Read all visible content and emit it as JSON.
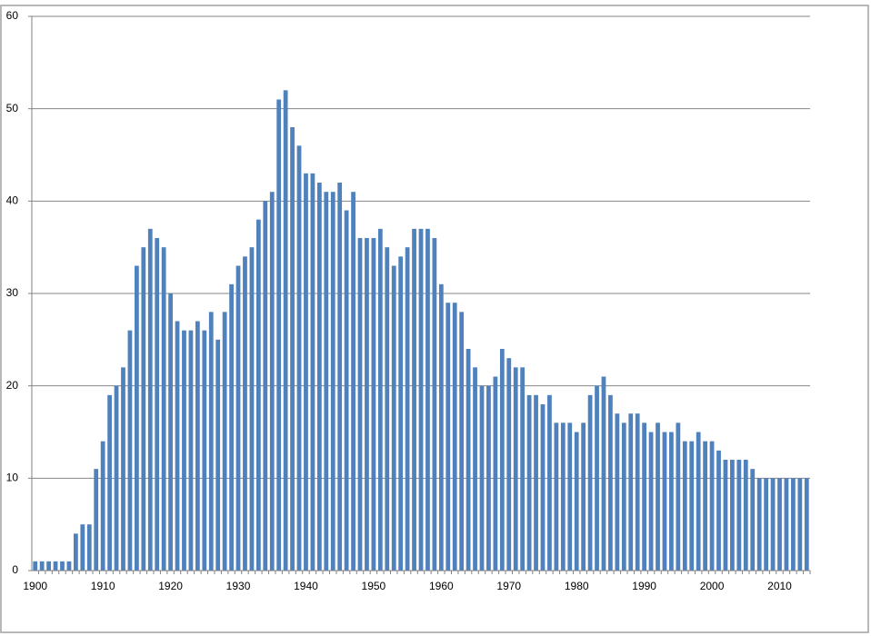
{
  "chart_data": {
    "type": "bar",
    "categories": [
      "1900",
      null,
      null,
      null,
      null,
      null,
      null,
      null,
      null,
      null,
      "1910",
      null,
      null,
      null,
      null,
      null,
      null,
      null,
      null,
      null,
      "1920",
      null,
      null,
      null,
      null,
      null,
      null,
      null,
      null,
      null,
      "1930",
      null,
      null,
      null,
      null,
      null,
      null,
      null,
      null,
      null,
      "1940",
      null,
      null,
      null,
      null,
      null,
      null,
      null,
      null,
      null,
      "1950",
      null,
      null,
      null,
      null,
      null,
      null,
      null,
      null,
      null,
      "1960",
      null,
      null,
      null,
      null,
      null,
      null,
      null,
      null,
      null,
      "1970",
      null,
      null,
      null,
      null,
      null,
      null,
      null,
      null,
      null,
      "1980",
      null,
      null,
      null,
      null,
      null,
      null,
      null,
      null,
      null,
      "1990",
      null,
      null,
      null,
      null,
      null,
      null,
      null,
      null,
      null,
      "2000",
      null,
      null,
      null,
      null,
      null,
      null,
      null,
      null,
      null,
      "2010",
      null,
      null,
      null,
      null
    ],
    "values": [
      1,
      1,
      1,
      1,
      1,
      1,
      4,
      5,
      5,
      11,
      14,
      19,
      20,
      22,
      26,
      33,
      35,
      37,
      36,
      35,
      30,
      27,
      26,
      26,
      27,
      26,
      28,
      25,
      28,
      31,
      33,
      34,
      35,
      38,
      40,
      41,
      51,
      52,
      48,
      46,
      43,
      43,
      42,
      41,
      41,
      42,
      39,
      41,
      36,
      36,
      36,
      37,
      35,
      33,
      34,
      35,
      37,
      37,
      37,
      36,
      31,
      29,
      29,
      28,
      24,
      22,
      20,
      20,
      21,
      24,
      23,
      22,
      22,
      19,
      19,
      18,
      19,
      16,
      16,
      16,
      15,
      16,
      19,
      20,
      21,
      19,
      17,
      16,
      17,
      17,
      16,
      15,
      16,
      15,
      15,
      16,
      14,
      14,
      15,
      14,
      14,
      13,
      12,
      12,
      12,
      12,
      11,
      10,
      10,
      10,
      10,
      10,
      10,
      10,
      10
    ],
    "color": "#4f81bd",
    "ylim": [
      0,
      60
    ],
    "yticks": [
      0,
      10,
      20,
      30,
      40,
      50,
      60
    ],
    "grid": true
  }
}
